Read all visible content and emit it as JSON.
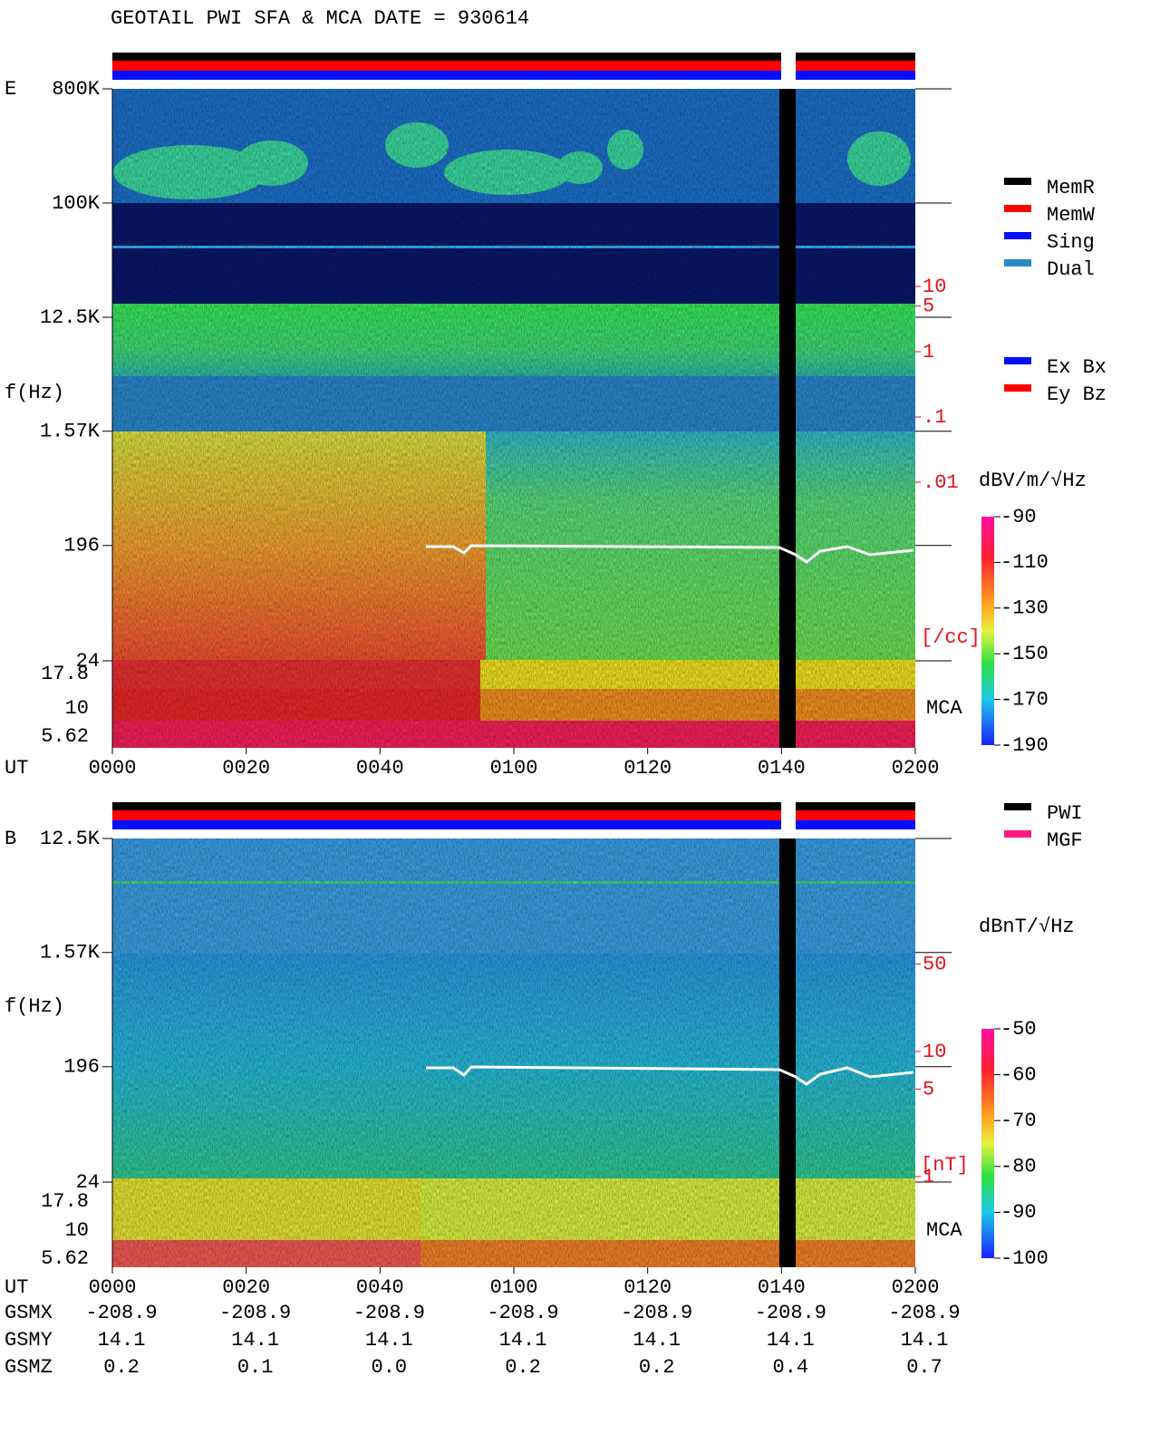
{
  "title": "GEOTAIL   PWI SFA & MCA   DATE = 930614",
  "x_label": "UT",
  "xticks": [
    "0000",
    "0020",
    "0040",
    "0100",
    "0120",
    "0140",
    "0200"
  ],
  "panels": [
    {
      "label": "E",
      "ylabel": "f(Hz)",
      "yticks": [
        {
          "value": 800000,
          "label": "800K"
        },
        {
          "value": 100000,
          "label": "100K"
        },
        {
          "value": 12500,
          "label": "12.5K"
        },
        {
          "value": 1570,
          "label": "1.57K"
        },
        196,
        24
      ],
      "mca_channels": [
        "17.8",
        "10",
        "5.62"
      ],
      "mca_label": "MCA",
      "right_scale": {
        "unit": "[/cc]",
        "ticks": [
          10,
          5,
          1,
          {
            "value": 0.1,
            "label": ".1"
          },
          {
            "value": 0.01,
            "label": ".01"
          }
        ]
      },
      "colorbar": {
        "unit": "dBV/m/√Hz",
        "lim": [
          -190,
          -90
        ],
        "ticks": [
          -90,
          -110,
          -130,
          -150,
          -170,
          -190
        ]
      },
      "legends": [
        [
          {
            "name": "MemR",
            "color": "#000000"
          },
          {
            "name": "MemW",
            "color": "#ff0000"
          },
          {
            "name": "Sing",
            "color": "#0010ff"
          },
          {
            "name": "Dual",
            "color": "#2a8ac8"
          }
        ],
        [
          {
            "name": "Ex Bx",
            "color": "#0010ff"
          },
          {
            "name": "Ey Bz",
            "color": "#ff0000"
          }
        ]
      ]
    },
    {
      "label": "B",
      "ylabel": "f(Hz)",
      "yticks": [
        {
          "value": 12500,
          "label": "12.5K"
        },
        {
          "value": 1570,
          "label": "1.57K"
        },
        196,
        24
      ],
      "mca_channels": [
        "17.8",
        "10",
        "5.62"
      ],
      "mca_label": "MCA",
      "right_scale": {
        "unit": "[nT]",
        "ticks": [
          50,
          10,
          5,
          1
        ]
      },
      "colorbar": {
        "unit": "dBnT/√Hz",
        "lim": [
          -100,
          -50
        ],
        "ticks": [
          -50,
          -60,
          -70,
          -80,
          -90,
          -100
        ]
      },
      "legends": [
        [
          {
            "name": "PWI",
            "color": "#000000"
          },
          {
            "name": "MGF",
            "color": "#ff1a80"
          }
        ]
      ]
    }
  ],
  "ephemeris": [
    {
      "name": "GSMX",
      "values": [
        "-208.9",
        "-208.9",
        "-208.9",
        "-208.9",
        "-208.9",
        "-208.9",
        "-208.9"
      ]
    },
    {
      "name": "GSMY",
      "values": [
        "14.1",
        "14.1",
        "14.1",
        "14.1",
        "14.1",
        "14.1",
        "14.1"
      ]
    },
    {
      "name": "GSMZ",
      "values": [
        "0.2",
        "0.1",
        "0.0",
        "0.2",
        "0.2",
        "0.4",
        "0.7"
      ]
    }
  ]
}
